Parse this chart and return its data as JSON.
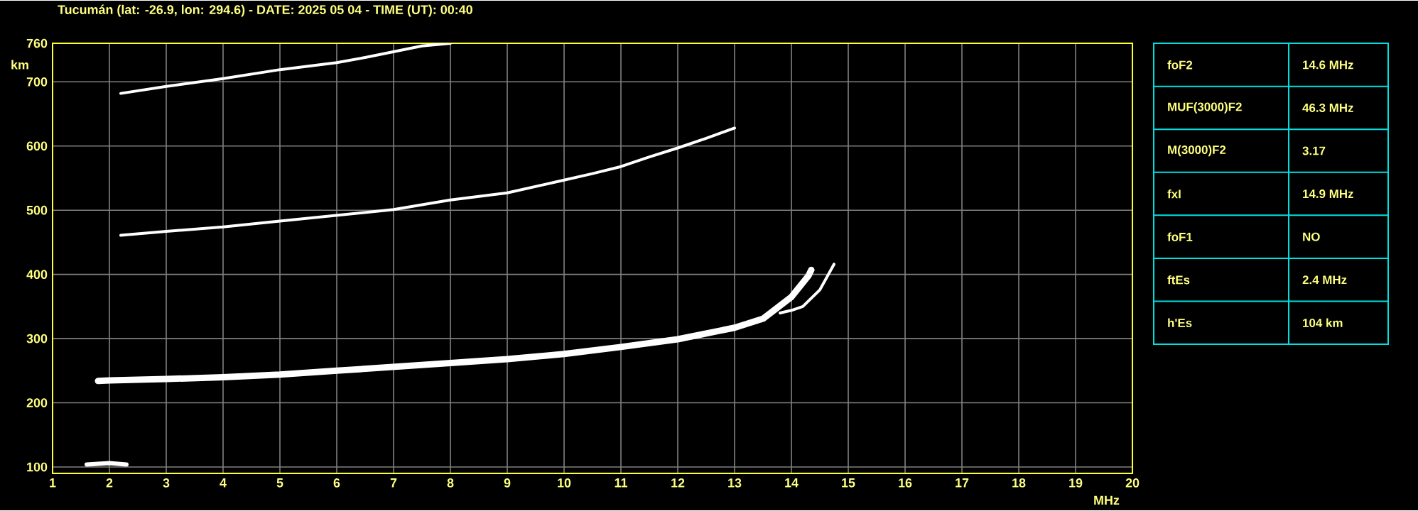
{
  "chart_data": [
    {
      "type": "line",
      "title": "Tucumán (lat: -26.9, lon: 294.6) - DATE: 2025 05 04 - TIME (UT): 00:40",
      "xlabel": "MHz",
      "ylabel": "km",
      "xlim": [
        1,
        20
      ],
      "ylim": [
        90,
        760
      ],
      "xticks": [
        1,
        2,
        3,
        4,
        5,
        6,
        7,
        8,
        9,
        10,
        11,
        12,
        13,
        14,
        15,
        16,
        17,
        18,
        19,
        20
      ],
      "yticks": [
        100,
        200,
        300,
        400,
        500,
        600,
        700,
        760
      ],
      "grid": true,
      "marker": "none",
      "line_style": "solid",
      "series": [
        {
          "color": "#ffffff",
          "x": [
            1.8,
            2,
            3,
            4,
            5,
            6,
            7,
            8,
            9,
            10,
            11,
            12,
            13,
            13.5,
            14,
            14.1,
            14.3,
            14.35
          ],
          "values": [
            234,
            235,
            237,
            240,
            244,
            250,
            256,
            262,
            268,
            276,
            287,
            299,
            317,
            331,
            365,
            376,
            398,
            407
          ]
        },
        {
          "color": "#ffffff",
          "x": [
            13.8,
            14,
            14.2,
            14.5,
            14.75
          ],
          "values": [
            340,
            344,
            350,
            376,
            416
          ]
        },
        {
          "color": "#ffffff",
          "x": [
            2.2,
            3,
            4,
            5,
            6,
            7,
            8,
            9,
            10,
            10.5,
            11,
            11.5,
            12,
            12.5,
            13
          ],
          "values": [
            461,
            467,
            474,
            483,
            492,
            501,
            516,
            527,
            547,
            557,
            568,
            583,
            597,
            612,
            628
          ]
        },
        {
          "color": "#ffffff",
          "x": [
            2.2,
            3,
            4,
            5,
            6,
            6.5,
            7.5,
            8
          ],
          "values": [
            682,
            693,
            705,
            719,
            730,
            738,
            756,
            760
          ]
        },
        {
          "color": "#ffffff",
          "x": [
            1.6,
            2,
            2.3
          ],
          "values": [
            104,
            106,
            104
          ]
        }
      ]
    },
    {
      "type": "other",
      "annotations": [
        "foF2",
        "14.6 MHz",
        "MUF(3000)F2",
        "46.3 MHz",
        "M(3000)F2",
        "3.17",
        "fxI",
        "14.9 MHz",
        "foF1",
        "NO",
        "ftEs",
        "2.4 MHz",
        "h'Es",
        "104 km"
      ]
    }
  ]
}
